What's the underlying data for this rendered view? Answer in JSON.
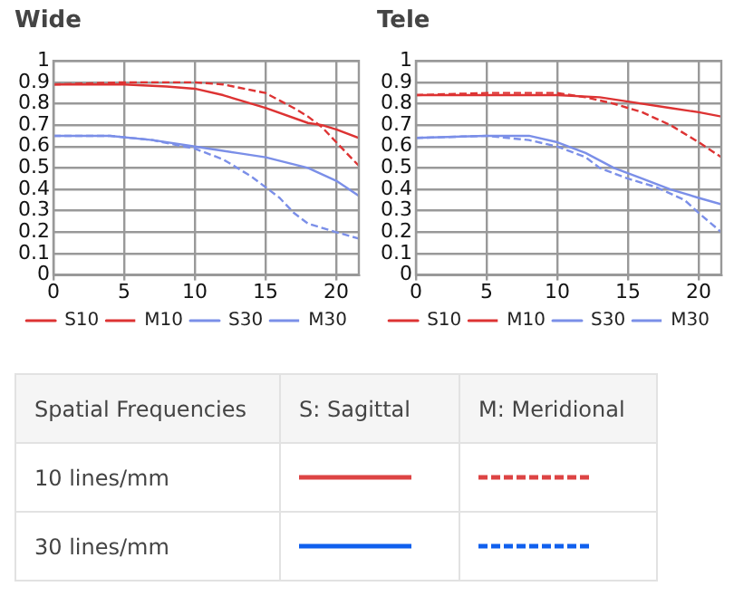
{
  "chart_data": [
    {
      "type": "line",
      "title": "Wide",
      "xlim": [
        0,
        21.6
      ],
      "xticks": [
        0,
        5,
        10,
        15,
        20
      ],
      "ylim": [
        0,
        1
      ],
      "yticks": [
        0,
        0.1,
        0.2,
        0.3,
        0.4,
        0.5,
        0.6,
        0.7,
        0.8,
        0.9,
        1
      ],
      "grid": true,
      "legend": "bottom",
      "marker": "none",
      "series": [
        {
          "name": "S10",
          "color": "#dd3333",
          "line_style": "solid",
          "x": [
            0,
            5,
            8,
            10,
            12,
            15,
            18,
            19,
            20,
            21.6
          ],
          "values": [
            0.89,
            0.89,
            0.88,
            0.87,
            0.84,
            0.78,
            0.71,
            0.7,
            0.68,
            0.64
          ]
        },
        {
          "name": "M10",
          "color": "#dd3333",
          "line_style": "dashed",
          "x": [
            0,
            5,
            10,
            12,
            15,
            17,
            18,
            19,
            20,
            21.6
          ],
          "values": [
            0.89,
            0.9,
            0.9,
            0.89,
            0.85,
            0.78,
            0.74,
            0.69,
            0.62,
            0.51
          ]
        },
        {
          "name": "S30",
          "color": "#7b8fe8",
          "line_style": "solid",
          "x": [
            0,
            4,
            7,
            10,
            13,
            15,
            18,
            20,
            21.6
          ],
          "values": [
            0.65,
            0.65,
            0.63,
            0.6,
            0.57,
            0.55,
            0.5,
            0.44,
            0.37
          ]
        },
        {
          "name": "M30",
          "color": "#7b8fe8",
          "line_style": "dashed",
          "x": [
            0,
            4,
            7,
            10,
            12,
            14,
            16,
            17,
            18,
            20,
            21.6
          ],
          "values": [
            0.65,
            0.65,
            0.63,
            0.59,
            0.54,
            0.46,
            0.36,
            0.29,
            0.24,
            0.2,
            0.17
          ]
        }
      ]
    },
    {
      "type": "line",
      "title": "Tele",
      "xlim": [
        0,
        21.6
      ],
      "xticks": [
        0,
        5,
        10,
        15,
        20
      ],
      "ylim": [
        0,
        1
      ],
      "yticks": [
        0,
        0.1,
        0.2,
        0.3,
        0.4,
        0.5,
        0.6,
        0.7,
        0.8,
        0.9,
        1
      ],
      "grid": true,
      "legend": "bottom",
      "marker": "none",
      "series": [
        {
          "name": "S10",
          "color": "#dd3333",
          "line_style": "solid",
          "x": [
            0,
            5,
            10,
            13,
            15,
            18,
            20,
            21.6
          ],
          "values": [
            0.84,
            0.84,
            0.84,
            0.83,
            0.81,
            0.78,
            0.76,
            0.74
          ]
        },
        {
          "name": "M10",
          "color": "#dd3333",
          "line_style": "dashed",
          "x": [
            0,
            5,
            10,
            12,
            14,
            16,
            18,
            20,
            21.6
          ],
          "values": [
            0.84,
            0.85,
            0.85,
            0.83,
            0.8,
            0.76,
            0.7,
            0.62,
            0.55
          ]
        },
        {
          "name": "S30",
          "color": "#7b8fe8",
          "line_style": "solid",
          "x": [
            0,
            5,
            8,
            10,
            12,
            14,
            16,
            18,
            20,
            21.6
          ],
          "values": [
            0.64,
            0.65,
            0.65,
            0.62,
            0.57,
            0.5,
            0.45,
            0.4,
            0.36,
            0.33
          ]
        },
        {
          "name": "M30",
          "color": "#7b8fe8",
          "line_style": "dashed",
          "x": [
            0,
            5,
            8,
            10,
            12,
            13,
            15,
            17,
            19,
            20,
            21.6
          ],
          "values": [
            0.64,
            0.65,
            0.63,
            0.6,
            0.55,
            0.5,
            0.45,
            0.41,
            0.35,
            0.29,
            0.2
          ]
        }
      ]
    },
    {
      "type": "other",
      "annotations": [
        "Spatial Frequencies",
        "S: Sagittal",
        "M: Meridional",
        "10 lines/mm",
        "30 lines/mm"
      ]
    }
  ]
}
